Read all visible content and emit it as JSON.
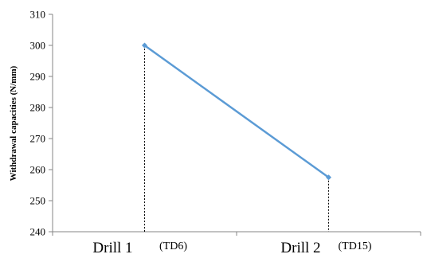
{
  "chart_data": {
    "type": "line",
    "categories": [
      "Drill 1",
      "Drill 2"
    ],
    "category_notes": [
      "(TD6)",
      "(TD15)"
    ],
    "values": [
      300,
      257.5
    ],
    "ylabel": "Withdrawal capacities (N/mm)",
    "ylim": [
      240,
      310
    ],
    "yticks": [
      240,
      250,
      260,
      270,
      280,
      290,
      300,
      310
    ],
    "grid": false,
    "series_color": "#5B9BD5",
    "drop_lines": true
  }
}
